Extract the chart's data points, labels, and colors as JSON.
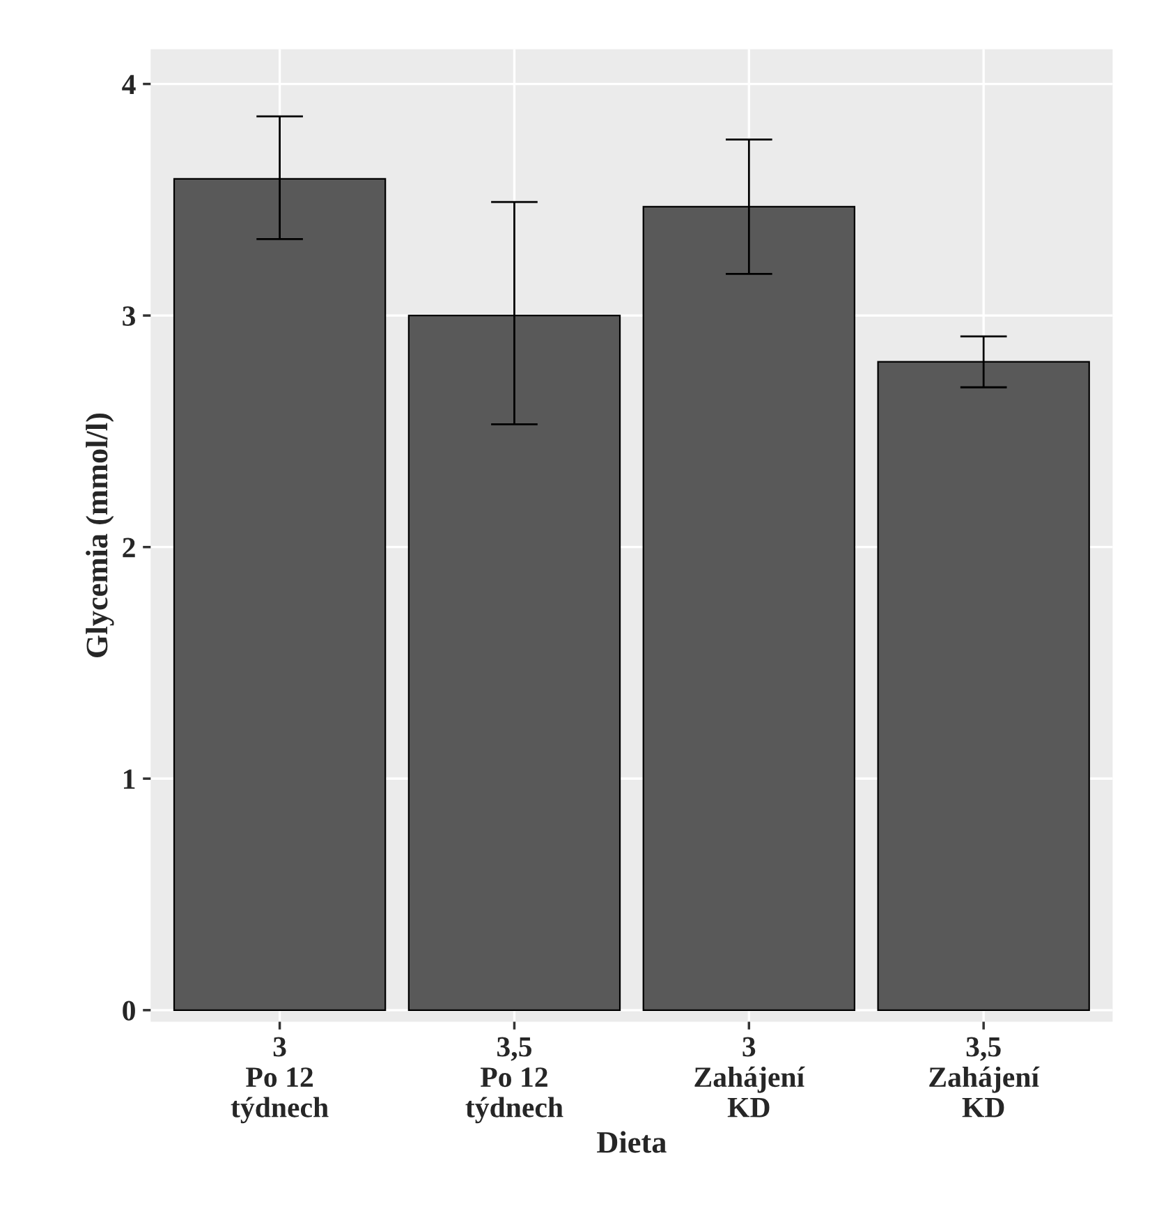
{
  "chart_data": {
    "type": "bar",
    "xlabel": "Dieta",
    "ylabel": "Glycemia (mmol/l)",
    "categories": [
      "3\nPo 12\ntýdnech",
      "3,5\nPo 12\ntýdnech",
      "3\nZahájení\nKD",
      "3,5\nZahájení\nKD"
    ],
    "values": [
      3.59,
      3.0,
      3.47,
      2.8
    ],
    "errors": [
      [
        3.33,
        3.86
      ],
      [
        2.53,
        3.49
      ],
      [
        3.18,
        3.76
      ],
      [
        2.69,
        2.91
      ]
    ],
    "color": "#595959",
    "ylim": [
      -0.05,
      4.15
    ],
    "yticks": [
      0,
      1,
      2,
      3,
      4
    ],
    "grid": true
  }
}
